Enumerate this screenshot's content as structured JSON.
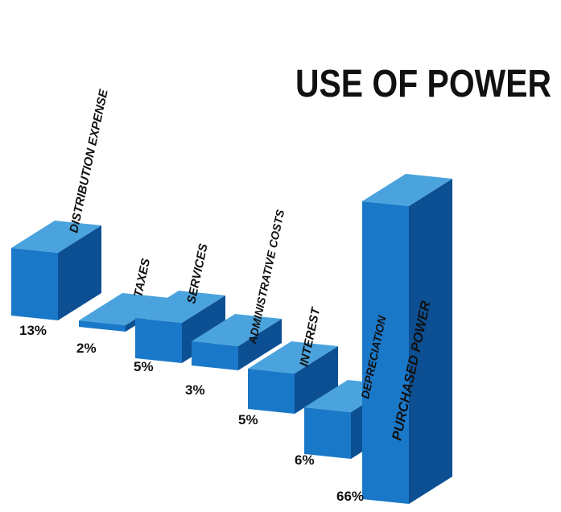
{
  "chart_data": {
    "type": "bar",
    "title": "USE OF POWER",
    "categories": [
      "DISTRIBUTION EXPENSE",
      "TAXES",
      "SERVICES",
      "ADMINISTRATIVE COSTS",
      "INTEREST",
      "DEPRECIATION",
      "PURCHASED POWER"
    ],
    "values": [
      13,
      2,
      5,
      3,
      5,
      6,
      66
    ],
    "value_labels": [
      "13%",
      "2%",
      "5%",
      "3%",
      "5%",
      "6%",
      "66%"
    ],
    "unit": "%",
    "style": "3d-bars"
  },
  "colors": {
    "front": "#1a78c8",
    "top": "#4aa3dd",
    "side": "#0c4f93",
    "text": "#111111"
  }
}
